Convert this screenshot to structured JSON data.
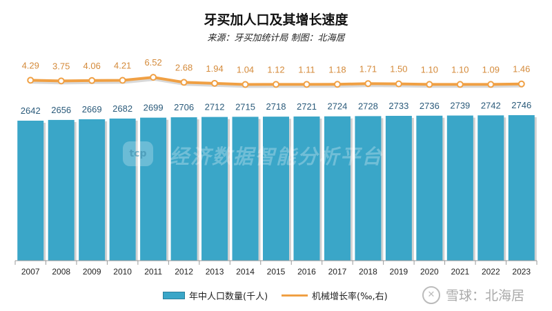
{
  "title": "牙买加人口及其增长速度",
  "subtitle": "来源：牙买加统计局 制图：北海居",
  "watermark": {
    "text": "经济数据智能分析平台",
    "logo": "tcp"
  },
  "credit": "雪球：北海居",
  "colors": {
    "bar": "#3aa6c8",
    "line": "#f0a044",
    "bar_label": "#2a5a7a",
    "line_label": "#d48a3a"
  },
  "chart_data": {
    "type": "bar+line",
    "title": "牙买加人口及其增长速度",
    "categories": [
      "2007",
      "2008",
      "2009",
      "2010",
      "2011",
      "2012",
      "2013",
      "2014",
      "2015",
      "2016",
      "2017",
      "2018",
      "2019",
      "2020",
      "2021",
      "2022",
      "2023"
    ],
    "series": [
      {
        "name": "年中人口数量(千人)",
        "type": "bar",
        "axis": "left",
        "values": [
          2642,
          2656,
          2669,
          2682,
          2699,
          2706,
          2712,
          2715,
          2718,
          2721,
          2724,
          2728,
          2733,
          2736,
          2739,
          2742,
          2746
        ]
      },
      {
        "name": "机械增长率(‰,右)",
        "type": "line",
        "axis": "right",
        "values": [
          4.29,
          3.75,
          4.06,
          4.21,
          6.52,
          2.68,
          1.94,
          1.04,
          1.12,
          1.11,
          1.18,
          1.71,
          1.5,
          1.1,
          1.1,
          1.09,
          1.46
        ]
      }
    ],
    "data_labels": true,
    "grid": false,
    "legend_placement": "bottom"
  }
}
